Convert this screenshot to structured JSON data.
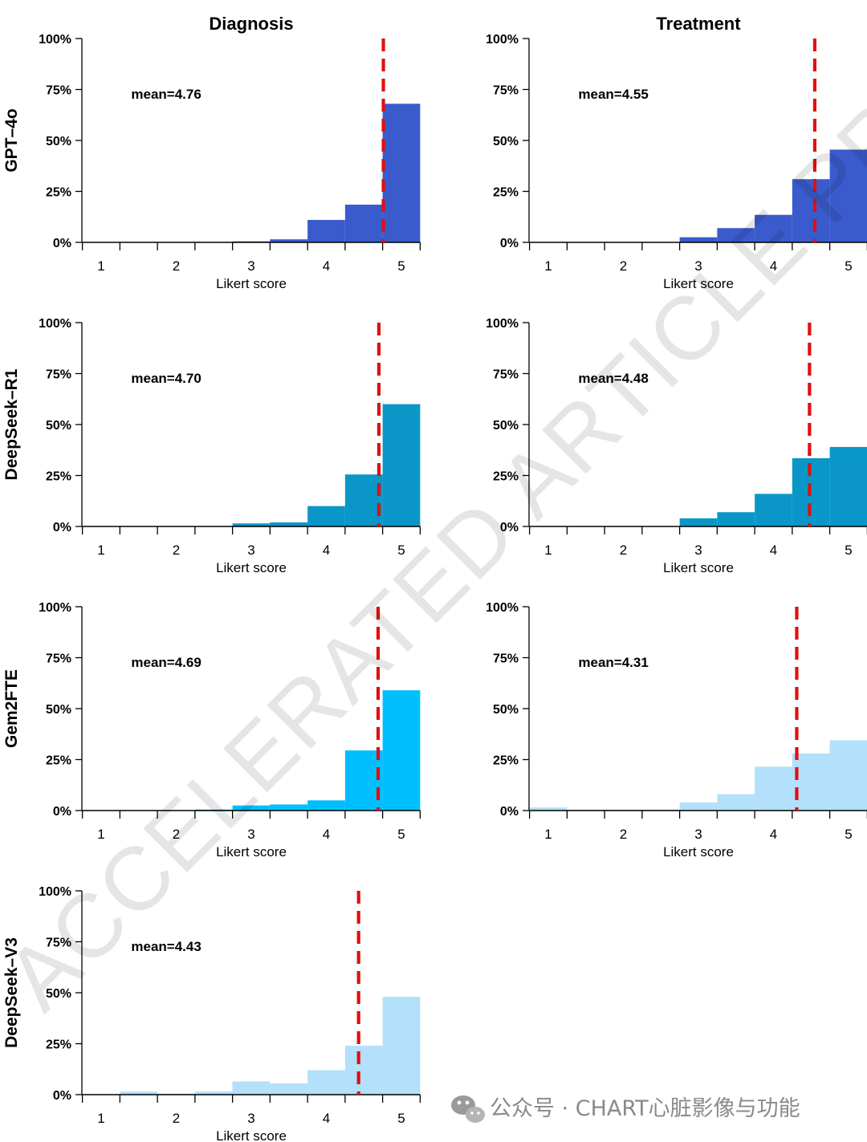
{
  "watermark": "ACCELERATED ARTICLE PREVIEW",
  "footer": {
    "text": "公众号 · CHART心脏影像与功能",
    "icon": "wechat-icon"
  },
  "column_titles": [
    "Diagnosis",
    "Treatment"
  ],
  "row_labels": [
    "GPT–4o",
    "DeepSeek–R1",
    "Gem2FTE",
    "DeepSeek–V3"
  ],
  "mean_line_color": "#e01010",
  "chart_data": [
    {
      "type": "bar",
      "panel": "GPT-4o / Diagnosis",
      "row": 0,
      "col": 0,
      "color": "#3a5bcc",
      "mean": 4.76,
      "mean_label": "mean=4.76",
      "xlabel": "Likert score",
      "ylabel": "",
      "xlim": [
        0.75,
        5.25
      ],
      "ylim": [
        0,
        100
      ],
      "x_ticks": [
        1,
        2,
        3,
        4,
        5
      ],
      "y_ticks": [
        "0%",
        "25%",
        "50%",
        "75%",
        "100%"
      ],
      "bins": [
        [
          0.75,
          1.25
        ],
        [
          1.25,
          1.75
        ],
        [
          1.75,
          2.25
        ],
        [
          2.25,
          2.75
        ],
        [
          2.75,
          3.25
        ],
        [
          3.25,
          3.75
        ],
        [
          3.75,
          4.25
        ],
        [
          4.25,
          4.75
        ],
        [
          4.75,
          5.25
        ]
      ],
      "values": [
        0,
        0,
        0,
        0,
        0.5,
        1.5,
        11,
        18.5,
        68
      ]
    },
    {
      "type": "bar",
      "panel": "GPT-4o / Treatment",
      "row": 0,
      "col": 1,
      "color": "#3a5bcc",
      "mean": 4.55,
      "mean_label": "mean=4.55",
      "xlabel": "Likert score",
      "ylabel": "",
      "xlim": [
        0.75,
        5.25
      ],
      "ylim": [
        0,
        100
      ],
      "x_ticks": [
        1,
        2,
        3,
        4,
        5
      ],
      "y_ticks": [
        "0%",
        "25%",
        "50%",
        "75%",
        "100%"
      ],
      "bins": [
        [
          0.75,
          1.25
        ],
        [
          1.25,
          1.75
        ],
        [
          1.75,
          2.25
        ],
        [
          2.25,
          2.75
        ],
        [
          2.75,
          3.25
        ],
        [
          3.25,
          3.75
        ],
        [
          3.75,
          4.25
        ],
        [
          4.25,
          4.75
        ],
        [
          4.75,
          5.25
        ]
      ],
      "values": [
        0,
        0,
        0,
        0,
        2.5,
        7,
        13.5,
        31,
        45.5
      ]
    },
    {
      "type": "bar",
      "panel": "DeepSeek-R1 / Diagnosis",
      "row": 1,
      "col": 0,
      "color": "#0a97c8",
      "mean": 4.7,
      "mean_label": "mean=4.70",
      "xlabel": "Likert score",
      "ylabel": "",
      "xlim": [
        0.75,
        5.25
      ],
      "ylim": [
        0,
        100
      ],
      "x_ticks": [
        1,
        2,
        3,
        4,
        5
      ],
      "y_ticks": [
        "0%",
        "25%",
        "50%",
        "75%",
        "100%"
      ],
      "bins": [
        [
          0.75,
          1.25
        ],
        [
          1.25,
          1.75
        ],
        [
          1.75,
          2.25
        ],
        [
          2.25,
          2.75
        ],
        [
          2.75,
          3.25
        ],
        [
          3.25,
          3.75
        ],
        [
          3.75,
          4.25
        ],
        [
          4.25,
          4.75
        ],
        [
          4.75,
          5.25
        ]
      ],
      "values": [
        0,
        0,
        0,
        0,
        1.5,
        2,
        10,
        25.5,
        60
      ]
    },
    {
      "type": "bar",
      "panel": "DeepSeek-R1 / Treatment",
      "row": 1,
      "col": 1,
      "color": "#0a97c8",
      "mean": 4.48,
      "mean_label": "mean=4.48",
      "xlabel": "Likert score",
      "ylabel": "",
      "xlim": [
        0.75,
        5.25
      ],
      "ylim": [
        0,
        100
      ],
      "x_ticks": [
        1,
        2,
        3,
        4,
        5
      ],
      "y_ticks": [
        "0%",
        "25%",
        "50%",
        "75%",
        "100%"
      ],
      "bins": [
        [
          0.75,
          1.25
        ],
        [
          1.25,
          1.75
        ],
        [
          1.75,
          2.25
        ],
        [
          2.25,
          2.75
        ],
        [
          2.75,
          3.25
        ],
        [
          3.25,
          3.75
        ],
        [
          3.75,
          4.25
        ],
        [
          4.25,
          4.75
        ],
        [
          4.75,
          5.25
        ]
      ],
      "values": [
        0,
        0,
        0,
        0,
        4,
        7,
        16,
        33.5,
        39
      ]
    },
    {
      "type": "bar",
      "panel": "Gem2FTE / Diagnosis",
      "row": 2,
      "col": 0,
      "color": "#00bfff",
      "mean": 4.69,
      "mean_label": "mean=4.69",
      "xlabel": "Likert score",
      "ylabel": "",
      "xlim": [
        0.75,
        5.25
      ],
      "ylim": [
        0,
        100
      ],
      "x_ticks": [
        1,
        2,
        3,
        4,
        5
      ],
      "y_ticks": [
        "0%",
        "25%",
        "50%",
        "75%",
        "100%"
      ],
      "bins": [
        [
          0.75,
          1.25
        ],
        [
          1.25,
          1.75
        ],
        [
          1.75,
          2.25
        ],
        [
          2.25,
          2.75
        ],
        [
          2.75,
          3.25
        ],
        [
          3.25,
          3.75
        ],
        [
          3.75,
          4.25
        ],
        [
          4.25,
          4.75
        ],
        [
          4.75,
          5.25
        ]
      ],
      "values": [
        0,
        0,
        0,
        0.5,
        2.5,
        3,
        5,
        29.5,
        59
      ]
    },
    {
      "type": "bar",
      "panel": "Gem2FTE / Treatment",
      "row": 2,
      "col": 1,
      "color": "#b3e0fa",
      "mean": 4.31,
      "mean_label": "mean=4.31",
      "xlabel": "Likert score",
      "ylabel": "",
      "xlim": [
        0.75,
        5.25
      ],
      "ylim": [
        0,
        100
      ],
      "x_ticks": [
        1,
        2,
        3,
        4,
        5
      ],
      "y_ticks": [
        "0%",
        "25%",
        "50%",
        "75%",
        "100%"
      ],
      "bins": [
        [
          0.75,
          1.25
        ],
        [
          1.25,
          1.75
        ],
        [
          1.75,
          2.25
        ],
        [
          2.25,
          2.75
        ],
        [
          2.75,
          3.25
        ],
        [
          3.25,
          3.75
        ],
        [
          3.75,
          4.25
        ],
        [
          4.25,
          4.75
        ],
        [
          4.75,
          5.25
        ]
      ],
      "values": [
        1.5,
        0.5,
        0.5,
        0.5,
        4,
        8,
        21.5,
        28,
        34.5
      ]
    },
    {
      "type": "bar",
      "panel": "DeepSeek-V3 / Diagnosis",
      "row": 3,
      "col": 0,
      "color": "#b3e0fa",
      "mean": 4.43,
      "mean_label": "mean=4.43",
      "xlabel": "Likert score",
      "ylabel": "",
      "xlim": [
        0.75,
        5.25
      ],
      "ylim": [
        0,
        100
      ],
      "x_ticks": [
        1,
        2,
        3,
        4,
        5
      ],
      "y_ticks": [
        "0%",
        "25%",
        "50%",
        "75%",
        "100%"
      ],
      "bins": [
        [
          0.75,
          1.25
        ],
        [
          1.25,
          1.75
        ],
        [
          1.75,
          2.25
        ],
        [
          2.25,
          2.75
        ],
        [
          2.75,
          3.25
        ],
        [
          3.25,
          3.75
        ],
        [
          3.75,
          4.25
        ],
        [
          4.25,
          4.75
        ],
        [
          4.75,
          5.25
        ]
      ],
      "values": [
        0,
        1.5,
        0.5,
        1.5,
        6.5,
        5.5,
        12,
        24,
        48
      ]
    }
  ]
}
